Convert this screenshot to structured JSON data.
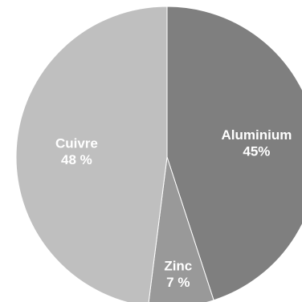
{
  "chart_data": {
    "type": "pie",
    "title": "",
    "categories": [
      "Aluminium",
      "Zinc",
      "Cuivre"
    ],
    "values": [
      45,
      7,
      48
    ],
    "value_labels": [
      "45%",
      "7 %",
      "48 %"
    ],
    "colors": [
      "#7f7f7f",
      "#999999",
      "#bfbfbf"
    ],
    "start_angle_deg": 0,
    "direction": "clockwise",
    "legend": "none",
    "data_labels": "inside"
  }
}
